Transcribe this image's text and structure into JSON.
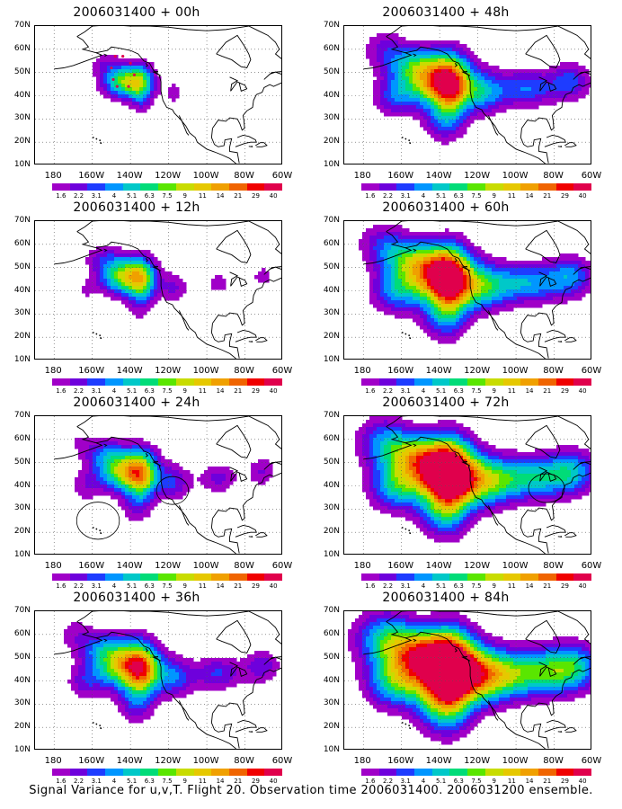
{
  "panels": [
    {
      "title": "2006031400 + 00h",
      "level": 0
    },
    {
      "title": "2006031400 + 48h",
      "level": 4
    },
    {
      "title": "2006031400 + 12h",
      "level": 1
    },
    {
      "title": "2006031400 + 60h",
      "level": 5
    },
    {
      "title": "2006031400 + 24h",
      "level": 2
    },
    {
      "title": "2006031400 + 72h",
      "level": 6
    },
    {
      "title": "2006031400 + 36h",
      "level": 3
    },
    {
      "title": "2006031400 + 84h",
      "level": 7
    }
  ],
  "lat_labels": [
    "70N",
    "60N",
    "50N",
    "40N",
    "30N",
    "20N",
    "10N"
  ],
  "lon_labels": [
    "180",
    "160W",
    "140W",
    "120W",
    "100W",
    "80W",
    "60W"
  ],
  "colorbar": {
    "labels": [
      "1.6",
      "2.2",
      "3.1",
      "4",
      "5.1",
      "6.3",
      "7.5",
      "9",
      "11",
      "14",
      "21",
      "29",
      "40"
    ],
    "colors": [
      "#a000c8",
      "#6e00dc",
      "#1e3cff",
      "#0096ff",
      "#00c8c8",
      "#00dc78",
      "#5ae600",
      "#c8dc00",
      "#e6c800",
      "#f0a000",
      "#f06400",
      "#f00000",
      "#e0004c"
    ]
  },
  "footer": "Signal Variance for u,v,T. Flight 20. Observation time 2006031400. 2006031200 ensemble."
}
